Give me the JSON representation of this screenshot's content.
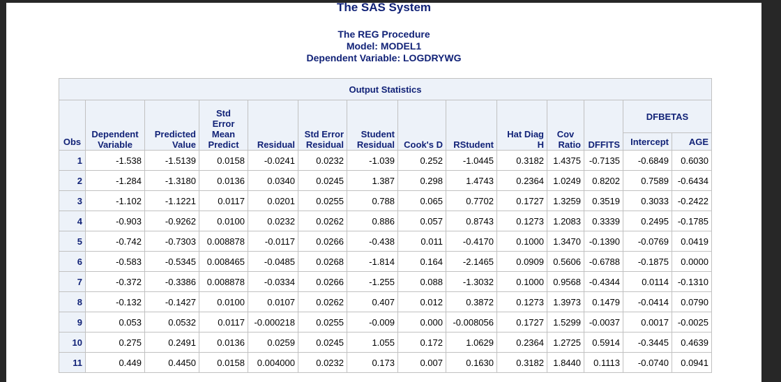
{
  "title": "The SAS System",
  "procedure": "The REG Procedure",
  "model": "Model: MODEL1",
  "dependent": "Dependent Variable: LOGDRYWG",
  "table": {
    "caption": "Output Statistics",
    "headers": {
      "obs": "Obs",
      "dependent_1": "Dependent",
      "dependent_2": "Variable",
      "predicted_1": "Predicted",
      "predicted_2": "Value",
      "stderr_1": "Std",
      "stderr_2": "Error",
      "stderr_3": "Mean",
      "stderr_4": "Predict",
      "residual": "Residual",
      "stdres_1": "Std Error",
      "stdres_2": "Residual",
      "student_1": "Student",
      "student_2": "Residual",
      "cooks": "Cook's D",
      "rstudent": "RStudent",
      "hatdiag_1": "Hat Diag",
      "hatdiag_2": "H",
      "cov_1": "Cov",
      "cov_2": "Ratio",
      "dffits": "DFFITS",
      "dfbetas": "DFBETAS",
      "intercept": "Intercept",
      "age": "AGE"
    },
    "rows": [
      [
        "1",
        "-1.538",
        "-1.5139",
        "0.0158",
        "-0.0241",
        "0.0232",
        "-1.039",
        "0.252",
        "-1.0445",
        "0.3182",
        "1.4375",
        "-0.7135",
        "-0.6849",
        "0.6030"
      ],
      [
        "2",
        "-1.284",
        "-1.3180",
        "0.0136",
        "0.0340",
        "0.0245",
        "1.387",
        "0.298",
        "1.4743",
        "0.2364",
        "1.0249",
        "0.8202",
        "0.7589",
        "-0.6434"
      ],
      [
        "3",
        "-1.102",
        "-1.1221",
        "0.0117",
        "0.0201",
        "0.0255",
        "0.788",
        "0.065",
        "0.7702",
        "0.1727",
        "1.3259",
        "0.3519",
        "0.3033",
        "-0.2422"
      ],
      [
        "4",
        "-0.903",
        "-0.9262",
        "0.0100",
        "0.0232",
        "0.0262",
        "0.886",
        "0.057",
        "0.8743",
        "0.1273",
        "1.2083",
        "0.3339",
        "0.2495",
        "-0.1785"
      ],
      [
        "5",
        "-0.742",
        "-0.7303",
        "0.008878",
        "-0.0117",
        "0.0266",
        "-0.438",
        "0.011",
        "-0.4170",
        "0.1000",
        "1.3470",
        "-0.1390",
        "-0.0769",
        "0.0419"
      ],
      [
        "6",
        "-0.583",
        "-0.5345",
        "0.008465",
        "-0.0485",
        "0.0268",
        "-1.814",
        "0.164",
        "-2.1465",
        "0.0909",
        "0.5606",
        "-0.6788",
        "-0.1875",
        "0.0000"
      ],
      [
        "7",
        "-0.372",
        "-0.3386",
        "0.008878",
        "-0.0334",
        "0.0266",
        "-1.255",
        "0.088",
        "-1.3032",
        "0.1000",
        "0.9568",
        "-0.4344",
        "0.0114",
        "-0.1310"
      ],
      [
        "8",
        "-0.132",
        "-0.1427",
        "0.0100",
        "0.0107",
        "0.0262",
        "0.407",
        "0.012",
        "0.3872",
        "0.1273",
        "1.3973",
        "0.1479",
        "-0.0414",
        "0.0790"
      ],
      [
        "9",
        "0.053",
        "0.0532",
        "0.0117",
        "-0.000218",
        "0.0255",
        "-0.009",
        "0.000",
        "-0.008056",
        "0.1727",
        "1.5299",
        "-0.0037",
        "0.0017",
        "-0.0025"
      ],
      [
        "10",
        "0.275",
        "0.2491",
        "0.0136",
        "0.0259",
        "0.0245",
        "1.055",
        "0.172",
        "1.0629",
        "0.2364",
        "1.2725",
        "0.5914",
        "-0.3445",
        "0.4639"
      ],
      [
        "11",
        "0.449",
        "0.4450",
        "0.0158",
        "0.004000",
        "0.0232",
        "0.173",
        "0.007",
        "0.1630",
        "0.3182",
        "1.8440",
        "0.1113",
        "-0.0740",
        "0.0941"
      ]
    ]
  }
}
